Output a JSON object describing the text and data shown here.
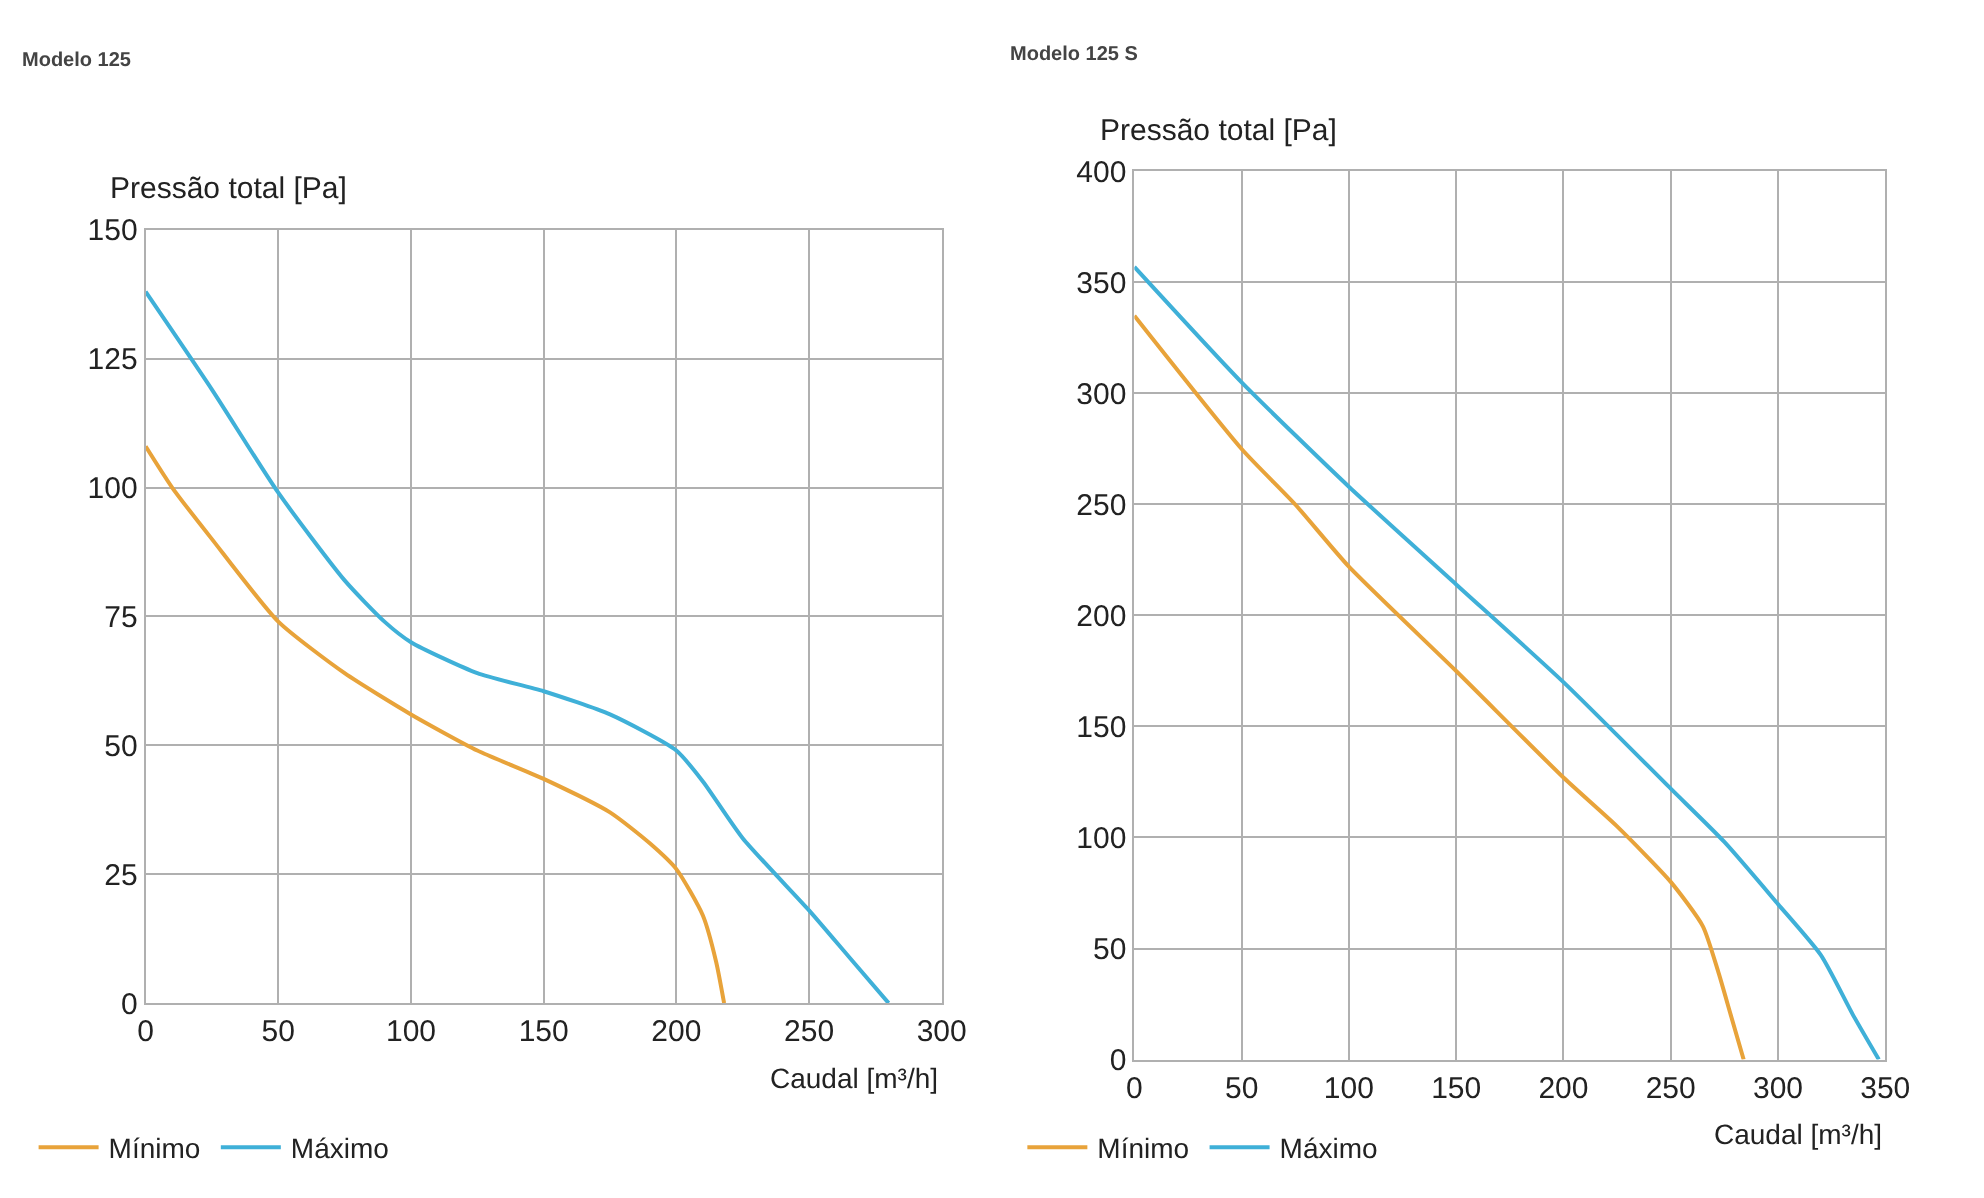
{
  "chart_data": [
    {
      "type": "line",
      "title": "Modelo 125",
      "ylabel": "Pressão total [Pa]",
      "xlabel": "Caudal [m³/h]",
      "xlim": [
        0,
        300
      ],
      "xticks": [
        0,
        50,
        100,
        150,
        200,
        250,
        300
      ],
      "ylim": [
        0,
        150
      ],
      "yticks": [
        0,
        25,
        50,
        75,
        100,
        125,
        150
      ],
      "grid": true,
      "legend": "bottom left",
      "marker": "none",
      "line_style": "solid",
      "series": [
        {
          "name": "Mínimo",
          "color": "#e8a33a",
          "x": [
            0,
            10,
            25,
            50,
            75,
            100,
            125,
            150,
            175,
            190,
            200,
            210,
            215,
            218
          ],
          "values": [
            108,
            100,
            90,
            74,
            64,
            56,
            49,
            43.5,
            37,
            31,
            26,
            17,
            8,
            0
          ]
        },
        {
          "name": "Máximo",
          "color": "#3fb0d8",
          "x": [
            0,
            25,
            50,
            75,
            90,
            100,
            125,
            150,
            175,
            200,
            210,
            225,
            250,
            265,
            280
          ],
          "values": [
            138,
            119,
            99,
            82,
            74,
            70,
            64,
            60.5,
            56,
            49,
            43,
            32,
            18,
            9,
            0
          ]
        }
      ]
    },
    {
      "type": "line",
      "title": "Modelo 125 S",
      "ylabel": "Pressão total [Pa]",
      "xlabel": "Caudal [m³/h]",
      "xlim": [
        0,
        350
      ],
      "xticks": [
        0,
        50,
        100,
        150,
        200,
        250,
        300,
        350
      ],
      "ylim": [
        0,
        400
      ],
      "yticks": [
        0,
        50,
        100,
        150,
        200,
        250,
        300,
        350,
        400
      ],
      "grid": true,
      "legend": "bottom left",
      "marker": "none",
      "line_style": "solid",
      "series": [
        {
          "name": "Mínimo",
          "color": "#e8a33a",
          "x": [
            0,
            50,
            75,
            100,
            150,
            200,
            225,
            250,
            265,
            272,
            278,
            284
          ],
          "values": [
            335,
            275,
            250,
            222,
            175,
            127,
            105,
            80,
            60,
            40,
            20,
            0
          ]
        },
        {
          "name": "Máximo",
          "color": "#3fb0d8",
          "x": [
            0,
            50,
            100,
            150,
            200,
            250,
            275,
            300,
            320,
            335,
            347
          ],
          "values": [
            357,
            305,
            258,
            214,
            170,
            122,
            98,
            70,
            47,
            20,
            0
          ]
        }
      ]
    }
  ]
}
